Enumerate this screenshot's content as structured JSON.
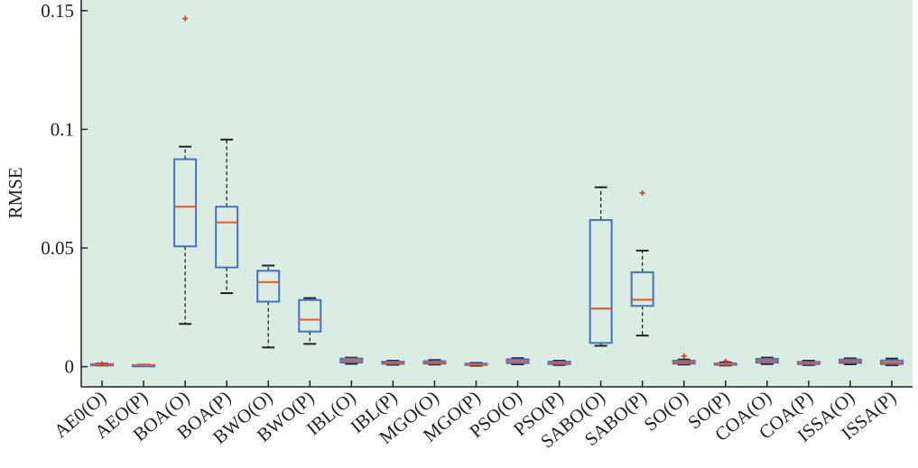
{
  "chart_data": {
    "type": "boxplot",
    "title": "",
    "xlabel": "",
    "ylabel": "RMSE",
    "ylim": [
      -0.0085,
      0.1545
    ],
    "yticks": [
      0,
      0.05,
      0.1,
      0.15
    ],
    "ytick_labels": [
      "0",
      "0.05",
      "0.1",
      "0.15"
    ],
    "grid": false,
    "colors": {
      "background": "#d9ede2",
      "box": "#4a6fc6",
      "median": "#f0552a",
      "whisker": "#222222",
      "outlier": "#e8321e",
      "axis": "#222222"
    },
    "categories": [
      "AE0(O)",
      "AEO(P)",
      "BOA(O)",
      "BOA(P)",
      "BWO(O)",
      "BWO(P)",
      "IBL(O)",
      "IBL(P)",
      "MGO(O)",
      "MGO(P)",
      "PSO(O)",
      "PSO(P)",
      "SABO(O)",
      "SABO(P)",
      "SO(O)",
      "SO(P)",
      "COA(O)",
      "COA(P)",
      "ISSA(O)",
      "ISSA(P)"
    ],
    "boxes": [
      {
        "whisker_low": 0.0005,
        "q1": 0.0007,
        "median": 0.0009,
        "q3": 0.0011,
        "whisker_high": 0.0013,
        "outliers": [
          0.0012
        ]
      },
      {
        "whisker_low": 0.0004,
        "q1": 0.0005,
        "median": 0.0006,
        "q3": 0.0007,
        "whisker_high": 0.0008,
        "outliers": []
      },
      {
        "whisker_low": 0.018,
        "q1": 0.0507,
        "median": 0.0674,
        "q3": 0.0874,
        "whisker_high": 0.0927,
        "outliers": [
          0.1467
        ]
      },
      {
        "whisker_low": 0.031,
        "q1": 0.0418,
        "median": 0.0608,
        "q3": 0.0674,
        "whisker_high": 0.0957,
        "outliers": []
      },
      {
        "whisker_low": 0.0081,
        "q1": 0.0274,
        "median": 0.0356,
        "q3": 0.0404,
        "whisker_high": 0.0426,
        "outliers": []
      },
      {
        "whisker_low": 0.0096,
        "q1": 0.0148,
        "median": 0.0198,
        "q3": 0.0281,
        "whisker_high": 0.0289,
        "outliers": []
      },
      {
        "whisker_low": 0.0012,
        "q1": 0.0018,
        "median": 0.0026,
        "q3": 0.0034,
        "whisker_high": 0.0038,
        "outliers": []
      },
      {
        "whisker_low": 0.0008,
        "q1": 0.0012,
        "median": 0.0016,
        "q3": 0.0021,
        "whisker_high": 0.0025,
        "outliers": []
      },
      {
        "whisker_low": 0.0009,
        "q1": 0.0013,
        "median": 0.0018,
        "q3": 0.0023,
        "whisker_high": 0.0028,
        "outliers": []
      },
      {
        "whisker_low": 0.0004,
        "q1": 0.0007,
        "median": 0.001,
        "q3": 0.0013,
        "whisker_high": 0.0016,
        "outliers": []
      },
      {
        "whisker_low": 0.001,
        "q1": 0.0015,
        "median": 0.0023,
        "q3": 0.0031,
        "whisker_high": 0.0036,
        "outliers": []
      },
      {
        "whisker_low": 0.0007,
        "q1": 0.0011,
        "median": 0.0016,
        "q3": 0.0021,
        "whisker_high": 0.0025,
        "outliers": []
      },
      {
        "whisker_low": 0.0088,
        "q1": 0.01,
        "median": 0.0245,
        "q3": 0.0618,
        "whisker_high": 0.0756,
        "outliers": []
      },
      {
        "whisker_low": 0.0131,
        "q1": 0.0256,
        "median": 0.0282,
        "q3": 0.0398,
        "whisker_high": 0.0489,
        "outliers": [
          0.0732
        ]
      },
      {
        "whisker_low": 0.0009,
        "q1": 0.0013,
        "median": 0.0019,
        "q3": 0.0025,
        "whisker_high": 0.003,
        "outliers": [
          0.0045
        ]
      },
      {
        "whisker_low": 0.0005,
        "q1": 0.0008,
        "median": 0.0011,
        "q3": 0.0014,
        "whisker_high": 0.0018,
        "outliers": [
          0.0023
        ]
      },
      {
        "whisker_low": 0.0011,
        "q1": 0.0017,
        "median": 0.0025,
        "q3": 0.0033,
        "whisker_high": 0.0038,
        "outliers": []
      },
      {
        "whisker_low": 0.0007,
        "q1": 0.0011,
        "median": 0.0015,
        "q3": 0.002,
        "whisker_high": 0.0025,
        "outliers": []
      },
      {
        "whisker_low": 0.001,
        "q1": 0.0016,
        "median": 0.0023,
        "q3": 0.003,
        "whisker_high": 0.0035,
        "outliers": []
      },
      {
        "whisker_low": 0.0006,
        "q1": 0.0011,
        "median": 0.0017,
        "q3": 0.0026,
        "whisker_high": 0.0034,
        "outliers": []
      }
    ]
  }
}
